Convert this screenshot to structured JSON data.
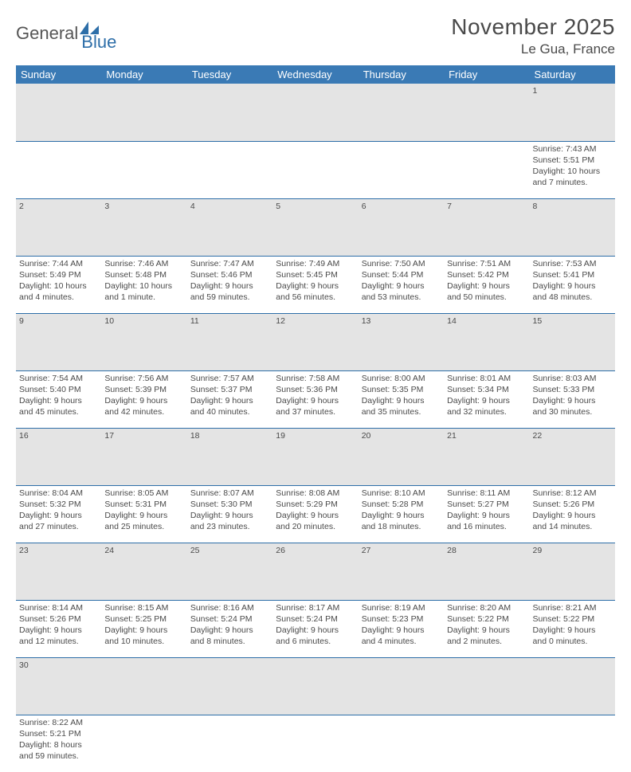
{
  "logo": {
    "part1": "General",
    "part2": "Blue"
  },
  "title": "November 2025",
  "location": "Le Gua, France",
  "colors": {
    "header_bg": "#3a7ab5",
    "header_text": "#ffffff",
    "daynum_bg": "#e4e4e4",
    "rule": "#2d6ea8",
    "body_text": "#4a4a4a",
    "logo_gray": "#555555",
    "logo_blue": "#2d6ea8"
  },
  "day_headers": [
    "Sunday",
    "Monday",
    "Tuesday",
    "Wednesday",
    "Thursday",
    "Friday",
    "Saturday"
  ],
  "weeks": [
    {
      "nums": [
        "",
        "",
        "",
        "",
        "",
        "",
        "1"
      ],
      "cells": [
        null,
        null,
        null,
        null,
        null,
        null,
        {
          "sunrise": "Sunrise: 7:43 AM",
          "sunset": "Sunset: 5:51 PM",
          "day1": "Daylight: 10 hours",
          "day2": "and 7 minutes."
        }
      ]
    },
    {
      "nums": [
        "2",
        "3",
        "4",
        "5",
        "6",
        "7",
        "8"
      ],
      "cells": [
        {
          "sunrise": "Sunrise: 7:44 AM",
          "sunset": "Sunset: 5:49 PM",
          "day1": "Daylight: 10 hours",
          "day2": "and 4 minutes."
        },
        {
          "sunrise": "Sunrise: 7:46 AM",
          "sunset": "Sunset: 5:48 PM",
          "day1": "Daylight: 10 hours",
          "day2": "and 1 minute."
        },
        {
          "sunrise": "Sunrise: 7:47 AM",
          "sunset": "Sunset: 5:46 PM",
          "day1": "Daylight: 9 hours",
          "day2": "and 59 minutes."
        },
        {
          "sunrise": "Sunrise: 7:49 AM",
          "sunset": "Sunset: 5:45 PM",
          "day1": "Daylight: 9 hours",
          "day2": "and 56 minutes."
        },
        {
          "sunrise": "Sunrise: 7:50 AM",
          "sunset": "Sunset: 5:44 PM",
          "day1": "Daylight: 9 hours",
          "day2": "and 53 minutes."
        },
        {
          "sunrise": "Sunrise: 7:51 AM",
          "sunset": "Sunset: 5:42 PM",
          "day1": "Daylight: 9 hours",
          "day2": "and 50 minutes."
        },
        {
          "sunrise": "Sunrise: 7:53 AM",
          "sunset": "Sunset: 5:41 PM",
          "day1": "Daylight: 9 hours",
          "day2": "and 48 minutes."
        }
      ]
    },
    {
      "nums": [
        "9",
        "10",
        "11",
        "12",
        "13",
        "14",
        "15"
      ],
      "cells": [
        {
          "sunrise": "Sunrise: 7:54 AM",
          "sunset": "Sunset: 5:40 PM",
          "day1": "Daylight: 9 hours",
          "day2": "and 45 minutes."
        },
        {
          "sunrise": "Sunrise: 7:56 AM",
          "sunset": "Sunset: 5:39 PM",
          "day1": "Daylight: 9 hours",
          "day2": "and 42 minutes."
        },
        {
          "sunrise": "Sunrise: 7:57 AM",
          "sunset": "Sunset: 5:37 PM",
          "day1": "Daylight: 9 hours",
          "day2": "and 40 minutes."
        },
        {
          "sunrise": "Sunrise: 7:58 AM",
          "sunset": "Sunset: 5:36 PM",
          "day1": "Daylight: 9 hours",
          "day2": "and 37 minutes."
        },
        {
          "sunrise": "Sunrise: 8:00 AM",
          "sunset": "Sunset: 5:35 PM",
          "day1": "Daylight: 9 hours",
          "day2": "and 35 minutes."
        },
        {
          "sunrise": "Sunrise: 8:01 AM",
          "sunset": "Sunset: 5:34 PM",
          "day1": "Daylight: 9 hours",
          "day2": "and 32 minutes."
        },
        {
          "sunrise": "Sunrise: 8:03 AM",
          "sunset": "Sunset: 5:33 PM",
          "day1": "Daylight: 9 hours",
          "day2": "and 30 minutes."
        }
      ]
    },
    {
      "nums": [
        "16",
        "17",
        "18",
        "19",
        "20",
        "21",
        "22"
      ],
      "cells": [
        {
          "sunrise": "Sunrise: 8:04 AM",
          "sunset": "Sunset: 5:32 PM",
          "day1": "Daylight: 9 hours",
          "day2": "and 27 minutes."
        },
        {
          "sunrise": "Sunrise: 8:05 AM",
          "sunset": "Sunset: 5:31 PM",
          "day1": "Daylight: 9 hours",
          "day2": "and 25 minutes."
        },
        {
          "sunrise": "Sunrise: 8:07 AM",
          "sunset": "Sunset: 5:30 PM",
          "day1": "Daylight: 9 hours",
          "day2": "and 23 minutes."
        },
        {
          "sunrise": "Sunrise: 8:08 AM",
          "sunset": "Sunset: 5:29 PM",
          "day1": "Daylight: 9 hours",
          "day2": "and 20 minutes."
        },
        {
          "sunrise": "Sunrise: 8:10 AM",
          "sunset": "Sunset: 5:28 PM",
          "day1": "Daylight: 9 hours",
          "day2": "and 18 minutes."
        },
        {
          "sunrise": "Sunrise: 8:11 AM",
          "sunset": "Sunset: 5:27 PM",
          "day1": "Daylight: 9 hours",
          "day2": "and 16 minutes."
        },
        {
          "sunrise": "Sunrise: 8:12 AM",
          "sunset": "Sunset: 5:26 PM",
          "day1": "Daylight: 9 hours",
          "day2": "and 14 minutes."
        }
      ]
    },
    {
      "nums": [
        "23",
        "24",
        "25",
        "26",
        "27",
        "28",
        "29"
      ],
      "cells": [
        {
          "sunrise": "Sunrise: 8:14 AM",
          "sunset": "Sunset: 5:26 PM",
          "day1": "Daylight: 9 hours",
          "day2": "and 12 minutes."
        },
        {
          "sunrise": "Sunrise: 8:15 AM",
          "sunset": "Sunset: 5:25 PM",
          "day1": "Daylight: 9 hours",
          "day2": "and 10 minutes."
        },
        {
          "sunrise": "Sunrise: 8:16 AM",
          "sunset": "Sunset: 5:24 PM",
          "day1": "Daylight: 9 hours",
          "day2": "and 8 minutes."
        },
        {
          "sunrise": "Sunrise: 8:17 AM",
          "sunset": "Sunset: 5:24 PM",
          "day1": "Daylight: 9 hours",
          "day2": "and 6 minutes."
        },
        {
          "sunrise": "Sunrise: 8:19 AM",
          "sunset": "Sunset: 5:23 PM",
          "day1": "Daylight: 9 hours",
          "day2": "and 4 minutes."
        },
        {
          "sunrise": "Sunrise: 8:20 AM",
          "sunset": "Sunset: 5:22 PM",
          "day1": "Daylight: 9 hours",
          "day2": "and 2 minutes."
        },
        {
          "sunrise": "Sunrise: 8:21 AM",
          "sunset": "Sunset: 5:22 PM",
          "day1": "Daylight: 9 hours",
          "day2": "and 0 minutes."
        }
      ]
    },
    {
      "nums": [
        "30",
        "",
        "",
        "",
        "",
        "",
        ""
      ],
      "cells": [
        {
          "sunrise": "Sunrise: 8:22 AM",
          "sunset": "Sunset: 5:21 PM",
          "day1": "Daylight: 8 hours",
          "day2": "and 59 minutes."
        },
        null,
        null,
        null,
        null,
        null,
        null
      ]
    }
  ]
}
